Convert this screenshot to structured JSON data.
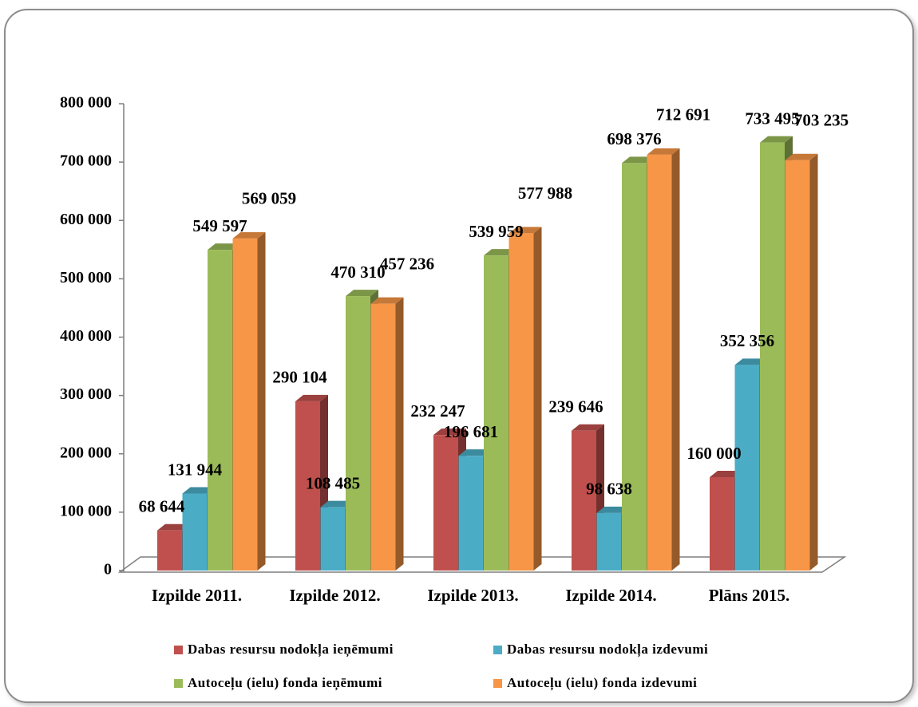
{
  "chart_data": {
    "type": "bar3d",
    "categories": [
      "Izpilde 2011.",
      "Izpilde 2012.",
      "Izpilde 2013.",
      "Izpilde 2014.",
      "Plāns 2015."
    ],
    "series": [
      {
        "name": "Dabas resursu nodokļa ieņēmumi",
        "color": "#c0504d",
        "values": [
          68644,
          290104,
          232247,
          239646,
          160000
        ],
        "value_labels": [
          "68 644",
          "290 104",
          "232 247",
          "239 646",
          "160 000"
        ]
      },
      {
        "name": "Dabas resursu nodokļa izdevumi",
        "color": "#4bacc6",
        "values": [
          131944,
          108485,
          196681,
          98638,
          352356
        ],
        "value_labels": [
          "131 944",
          "108 485",
          "196 681",
          "98 638",
          "352 356"
        ]
      },
      {
        "name": "Autoceļu (ielu) fonda ieņēmumi",
        "color": "#9bbb59",
        "values": [
          549597,
          470310,
          539959,
          698376,
          733495
        ],
        "value_labels": [
          "549 597",
          "470 310",
          "539 959",
          "698 376",
          "733 495"
        ]
      },
      {
        "name": "Autoceļu (ielu) fonda izdevumi",
        "color": "#f79646",
        "values": [
          569059,
          457236,
          577988,
          712691,
          703235
        ],
        "value_labels": [
          "569 059",
          "457 236",
          "577 988",
          "712 691",
          "703 235"
        ]
      }
    ],
    "ylim": [
      0,
      800000
    ],
    "yticks": [
      0,
      {
        "value": 100000,
        "label": "100 000"
      },
      {
        "value": 200000,
        "label": "200 000"
      },
      {
        "value": 300000,
        "label": "300 000"
      },
      {
        "value": 400000,
        "label": "400 000"
      },
      {
        "value": 500000,
        "label": "500 000"
      },
      {
        "value": 600000,
        "label": "600 000"
      },
      {
        "value": 700000,
        "label": "700 000"
      },
      {
        "value": 800000,
        "label": "800 000"
      }
    ],
    "legend": "bottom"
  }
}
